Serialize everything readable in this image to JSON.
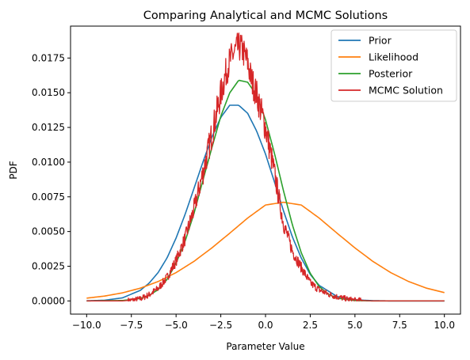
{
  "chart_data": {
    "type": "line",
    "title": "Comparing Analytical and MCMC Solutions",
    "xlabel": "Parameter Value",
    "ylabel": "PDF",
    "xlim": [
      -10.9,
      10.9
    ],
    "ylim": [
      -0.00095,
      0.0198
    ],
    "xticks": [
      -10.0,
      -7.5,
      -5.0,
      -2.5,
      0.0,
      2.5,
      5.0,
      7.5,
      10.0
    ],
    "xtick_labels": [
      "−10.0",
      "−7.5",
      "−5.0",
      "−2.5",
      "0.0",
      "2.5",
      "5.0",
      "7.5",
      "10.0"
    ],
    "yticks": [
      0.0,
      0.0025,
      0.005,
      0.0075,
      0.01,
      0.0125,
      0.015,
      0.0175
    ],
    "ytick_labels": [
      "0.0000",
      "0.0025",
      "0.0050",
      "0.0075",
      "0.0100",
      "0.0125",
      "0.0150",
      "0.0175"
    ],
    "grid": false,
    "legend_position": "top-right",
    "series": [
      {
        "name": "Prior",
        "color": "#1f77b4",
        "x": [
          -10,
          -9,
          -8,
          -7,
          -6.5,
          -6,
          -5.5,
          -5,
          -4.5,
          -4,
          -3.5,
          -3,
          -2.5,
          -2,
          -1.5,
          -1,
          -0.5,
          0,
          0.5,
          1,
          1.5,
          2,
          2.5,
          3,
          4,
          5,
          6,
          7,
          8,
          10
        ],
        "y": [
          1e-05,
          5e-05,
          0.00022,
          0.00076,
          0.00129,
          0.00205,
          0.00311,
          0.00453,
          0.00622,
          0.0081,
          0.01,
          0.01179,
          0.01322,
          0.0141,
          0.0141,
          0.01352,
          0.01225,
          0.01058,
          0.00857,
          0.00651,
          0.00462,
          0.00309,
          0.00191,
          0.00112,
          0.00032,
          8e-05,
          2e-05,
          0.0,
          0.0,
          0.0
        ]
      },
      {
        "name": "Likelihood",
        "color": "#ff7f0e",
        "x": [
          -10,
          -9,
          -8,
          -7,
          -6,
          -5,
          -4,
          -3,
          -2,
          -1,
          0,
          1,
          2,
          3,
          4,
          5,
          6,
          7,
          8,
          9,
          10
        ],
        "y": [
          0.0002,
          0.00035,
          0.00058,
          0.00092,
          0.0014,
          0.00204,
          0.00285,
          0.00382,
          0.00488,
          0.00597,
          0.00691,
          0.00711,
          0.00691,
          0.00597,
          0.00488,
          0.00382,
          0.00285,
          0.00204,
          0.0014,
          0.00092,
          0.0006
        ]
      },
      {
        "name": "Posterior",
        "color": "#2ca02c",
        "x": [
          -10,
          -8,
          -7,
          -6.5,
          -6,
          -5.5,
          -5,
          -4.5,
          -4,
          -3.5,
          -3,
          -2.5,
          -2,
          -1.5,
          -1,
          -0.5,
          0,
          0.5,
          1,
          1.5,
          2,
          2.5,
          3,
          3.5,
          4,
          5,
          6,
          8,
          10
        ],
        "y": [
          0.0,
          3e-05,
          0.00018,
          0.00041,
          0.00081,
          0.00155,
          0.00272,
          0.00428,
          0.00629,
          0.00869,
          0.01103,
          0.01331,
          0.01499,
          0.0159,
          0.01576,
          0.01483,
          0.01305,
          0.01063,
          0.00796,
          0.00549,
          0.00347,
          0.00199,
          0.00104,
          0.00049,
          0.0002,
          3e-05,
          0.0,
          0.0,
          0.0
        ]
      },
      {
        "name": "MCMC Solution",
        "color": "#d62728",
        "x": [
          -10,
          -8,
          -7.5,
          -7,
          -6.5,
          -6,
          -5.5,
          -5,
          -4.5,
          -4,
          -3.5,
          -3,
          -2.5,
          -2.2,
          -2,
          -1.8,
          -1.6,
          -1.4,
          -1.2,
          -1,
          -0.8,
          -0.5,
          0,
          0.5,
          1,
          1.5,
          2,
          2.5,
          3,
          3.5,
          4,
          4.5,
          5,
          6,
          10
        ],
        "y": [
          0.0,
          0.0,
          5e-05,
          0.00015,
          0.00045,
          0.0009,
          0.0017,
          0.0029,
          0.0045,
          0.0066,
          0.0092,
          0.012,
          0.0149,
          0.0165,
          0.0173,
          0.0178,
          0.0182,
          0.0183,
          0.0178,
          0.0172,
          0.016,
          0.0149,
          0.0125,
          0.0092,
          0.0056,
          0.0036,
          0.0024,
          0.0013,
          0.0008,
          0.0005,
          0.0003,
          0.00015,
          5e-05,
          0.0,
          0.0
        ]
      }
    ]
  }
}
